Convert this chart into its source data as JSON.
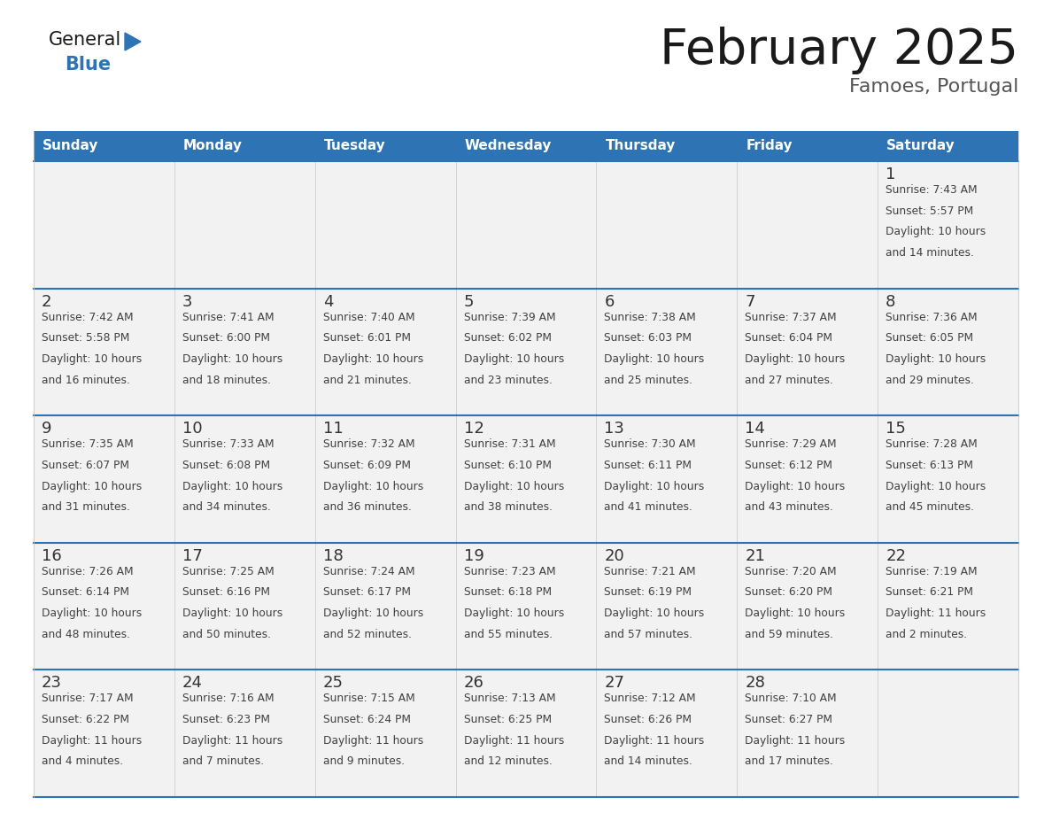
{
  "title": "February 2025",
  "subtitle": "Famoes, Portugal",
  "days_of_week": [
    "Sunday",
    "Monday",
    "Tuesday",
    "Wednesday",
    "Thursday",
    "Friday",
    "Saturday"
  ],
  "header_bg": "#2E74B5",
  "header_text": "#FFFFFF",
  "cell_bg": "#F2F2F2",
  "border_color": "#2E74B5",
  "day_num_color": "#333333",
  "text_color": "#404040",
  "title_color": "#1a1a1a",
  "logo_general_color": "#1a1a1a",
  "logo_blue_color": "#2E74B5",
  "calendar_data": [
    [
      null,
      null,
      null,
      null,
      null,
      null,
      {
        "day": 1,
        "sunrise": "7:43 AM",
        "sunset": "5:57 PM",
        "daylight": "10 hours\nand 14 minutes."
      }
    ],
    [
      {
        "day": 2,
        "sunrise": "7:42 AM",
        "sunset": "5:58 PM",
        "daylight": "10 hours\nand 16 minutes."
      },
      {
        "day": 3,
        "sunrise": "7:41 AM",
        "sunset": "6:00 PM",
        "daylight": "10 hours\nand 18 minutes."
      },
      {
        "day": 4,
        "sunrise": "7:40 AM",
        "sunset": "6:01 PM",
        "daylight": "10 hours\nand 21 minutes."
      },
      {
        "day": 5,
        "sunrise": "7:39 AM",
        "sunset": "6:02 PM",
        "daylight": "10 hours\nand 23 minutes."
      },
      {
        "day": 6,
        "sunrise": "7:38 AM",
        "sunset": "6:03 PM",
        "daylight": "10 hours\nand 25 minutes."
      },
      {
        "day": 7,
        "sunrise": "7:37 AM",
        "sunset": "6:04 PM",
        "daylight": "10 hours\nand 27 minutes."
      },
      {
        "day": 8,
        "sunrise": "7:36 AM",
        "sunset": "6:05 PM",
        "daylight": "10 hours\nand 29 minutes."
      }
    ],
    [
      {
        "day": 9,
        "sunrise": "7:35 AM",
        "sunset": "6:07 PM",
        "daylight": "10 hours\nand 31 minutes."
      },
      {
        "day": 10,
        "sunrise": "7:33 AM",
        "sunset": "6:08 PM",
        "daylight": "10 hours\nand 34 minutes."
      },
      {
        "day": 11,
        "sunrise": "7:32 AM",
        "sunset": "6:09 PM",
        "daylight": "10 hours\nand 36 minutes."
      },
      {
        "day": 12,
        "sunrise": "7:31 AM",
        "sunset": "6:10 PM",
        "daylight": "10 hours\nand 38 minutes."
      },
      {
        "day": 13,
        "sunrise": "7:30 AM",
        "sunset": "6:11 PM",
        "daylight": "10 hours\nand 41 minutes."
      },
      {
        "day": 14,
        "sunrise": "7:29 AM",
        "sunset": "6:12 PM",
        "daylight": "10 hours\nand 43 minutes."
      },
      {
        "day": 15,
        "sunrise": "7:28 AM",
        "sunset": "6:13 PM",
        "daylight": "10 hours\nand 45 minutes."
      }
    ],
    [
      {
        "day": 16,
        "sunrise": "7:26 AM",
        "sunset": "6:14 PM",
        "daylight": "10 hours\nand 48 minutes."
      },
      {
        "day": 17,
        "sunrise": "7:25 AM",
        "sunset": "6:16 PM",
        "daylight": "10 hours\nand 50 minutes."
      },
      {
        "day": 18,
        "sunrise": "7:24 AM",
        "sunset": "6:17 PM",
        "daylight": "10 hours\nand 52 minutes."
      },
      {
        "day": 19,
        "sunrise": "7:23 AM",
        "sunset": "6:18 PM",
        "daylight": "10 hours\nand 55 minutes."
      },
      {
        "day": 20,
        "sunrise": "7:21 AM",
        "sunset": "6:19 PM",
        "daylight": "10 hours\nand 57 minutes."
      },
      {
        "day": 21,
        "sunrise": "7:20 AM",
        "sunset": "6:20 PM",
        "daylight": "10 hours\nand 59 minutes."
      },
      {
        "day": 22,
        "sunrise": "7:19 AM",
        "sunset": "6:21 PM",
        "daylight": "11 hours\nand 2 minutes."
      }
    ],
    [
      {
        "day": 23,
        "sunrise": "7:17 AM",
        "sunset": "6:22 PM",
        "daylight": "11 hours\nand 4 minutes."
      },
      {
        "day": 24,
        "sunrise": "7:16 AM",
        "sunset": "6:23 PM",
        "daylight": "11 hours\nand 7 minutes."
      },
      {
        "day": 25,
        "sunrise": "7:15 AM",
        "sunset": "6:24 PM",
        "daylight": "11 hours\nand 9 minutes."
      },
      {
        "day": 26,
        "sunrise": "7:13 AM",
        "sunset": "6:25 PM",
        "daylight": "11 hours\nand 12 minutes."
      },
      {
        "day": 27,
        "sunrise": "7:12 AM",
        "sunset": "6:26 PM",
        "daylight": "11 hours\nand 14 minutes."
      },
      {
        "day": 28,
        "sunrise": "7:10 AM",
        "sunset": "6:27 PM",
        "daylight": "11 hours\nand 17 minutes."
      },
      null
    ]
  ]
}
